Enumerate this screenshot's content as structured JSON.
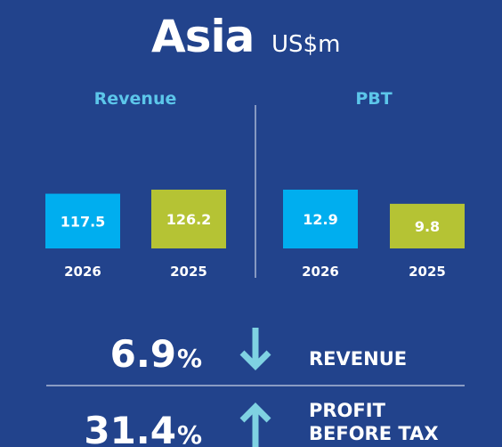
{
  "title": "Asia",
  "unit": "US$m",
  "chart_data": [
    {
      "type": "bar",
      "title": "Revenue",
      "categories": [
        "2026",
        "2025"
      ],
      "values": [
        117.5,
        126.2
      ],
      "colors": [
        "#00aeef",
        "#b5c334"
      ]
    },
    {
      "type": "bar",
      "title": "PBT",
      "categories": [
        "2026",
        "2025"
      ],
      "values": [
        12.9,
        9.8
      ],
      "colors": [
        "#00aeef",
        "#b5c334"
      ]
    }
  ],
  "summary": [
    {
      "value": 6.9,
      "unit": "%",
      "direction": "down",
      "label": [
        "REVENUE"
      ]
    },
    {
      "value": 31.4,
      "unit": "%",
      "direction": "up",
      "label": [
        "PROFIT",
        "BEFORE TAX"
      ]
    }
  ]
}
